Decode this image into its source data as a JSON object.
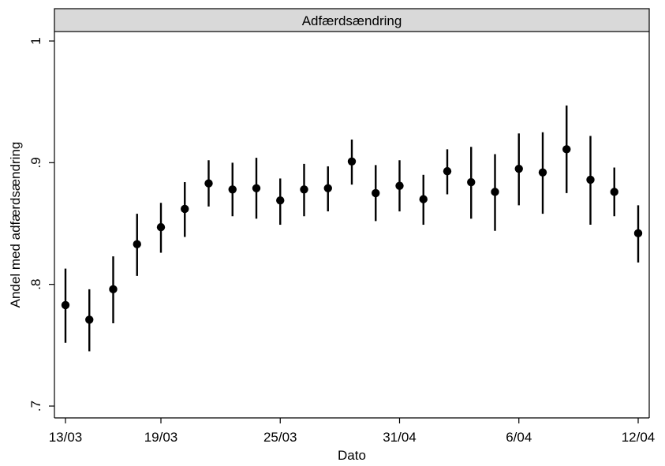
{
  "chart_data": {
    "type": "scatter",
    "title": "Adfærdsændring",
    "xlabel": "Dato",
    "ylabel": "Andel med adfærdsændring",
    "ylim": [
      0.7,
      1.0
    ],
    "yticks": [
      {
        "value": 0.7,
        "label": ".7"
      },
      {
        "value": 0.8,
        "label": ".8"
      },
      {
        "value": 0.9,
        "label": ".9"
      },
      {
        "value": 1.0,
        "label": "1"
      }
    ],
    "xticks": [
      {
        "index": 0,
        "label": "13/03"
      },
      {
        "index": 4,
        "label": "19/03"
      },
      {
        "index": 9,
        "label": "25/03"
      },
      {
        "index": 14,
        "label": "31/04"
      },
      {
        "index": 19,
        "label": "6/04"
      },
      {
        "index": 24,
        "label": "12/04"
      }
    ],
    "grid": false,
    "points": [
      {
        "y": 0.783,
        "lo": 0.752,
        "hi": 0.813
      },
      {
        "y": 0.771,
        "lo": 0.745,
        "hi": 0.796
      },
      {
        "y": 0.796,
        "lo": 0.768,
        "hi": 0.823
      },
      {
        "y": 0.833,
        "lo": 0.807,
        "hi": 0.858
      },
      {
        "y": 0.847,
        "lo": 0.826,
        "hi": 0.867
      },
      {
        "y": 0.862,
        "lo": 0.839,
        "hi": 0.884
      },
      {
        "y": 0.883,
        "lo": 0.864,
        "hi": 0.902
      },
      {
        "y": 0.878,
        "lo": 0.856,
        "hi": 0.9
      },
      {
        "y": 0.879,
        "lo": 0.854,
        "hi": 0.904
      },
      {
        "y": 0.869,
        "lo": 0.849,
        "hi": 0.887
      },
      {
        "y": 0.878,
        "lo": 0.856,
        "hi": 0.899
      },
      {
        "y": 0.879,
        "lo": 0.86,
        "hi": 0.897
      },
      {
        "y": 0.901,
        "lo": 0.882,
        "hi": 0.919
      },
      {
        "y": 0.875,
        "lo": 0.852,
        "hi": 0.898
      },
      {
        "y": 0.881,
        "lo": 0.86,
        "hi": 0.902
      },
      {
        "y": 0.87,
        "lo": 0.849,
        "hi": 0.89
      },
      {
        "y": 0.893,
        "lo": 0.874,
        "hi": 0.911
      },
      {
        "y": 0.884,
        "lo": 0.854,
        "hi": 0.913
      },
      {
        "y": 0.876,
        "lo": 0.844,
        "hi": 0.907
      },
      {
        "y": 0.895,
        "lo": 0.865,
        "hi": 0.924
      },
      {
        "y": 0.892,
        "lo": 0.858,
        "hi": 0.925
      },
      {
        "y": 0.911,
        "lo": 0.875,
        "hi": 0.947
      },
      {
        "y": 0.886,
        "lo": 0.849,
        "hi": 0.922
      },
      {
        "y": 0.876,
        "lo": 0.856,
        "hi": 0.896
      },
      {
        "y": 0.842,
        "lo": 0.818,
        "hi": 0.865
      }
    ]
  }
}
